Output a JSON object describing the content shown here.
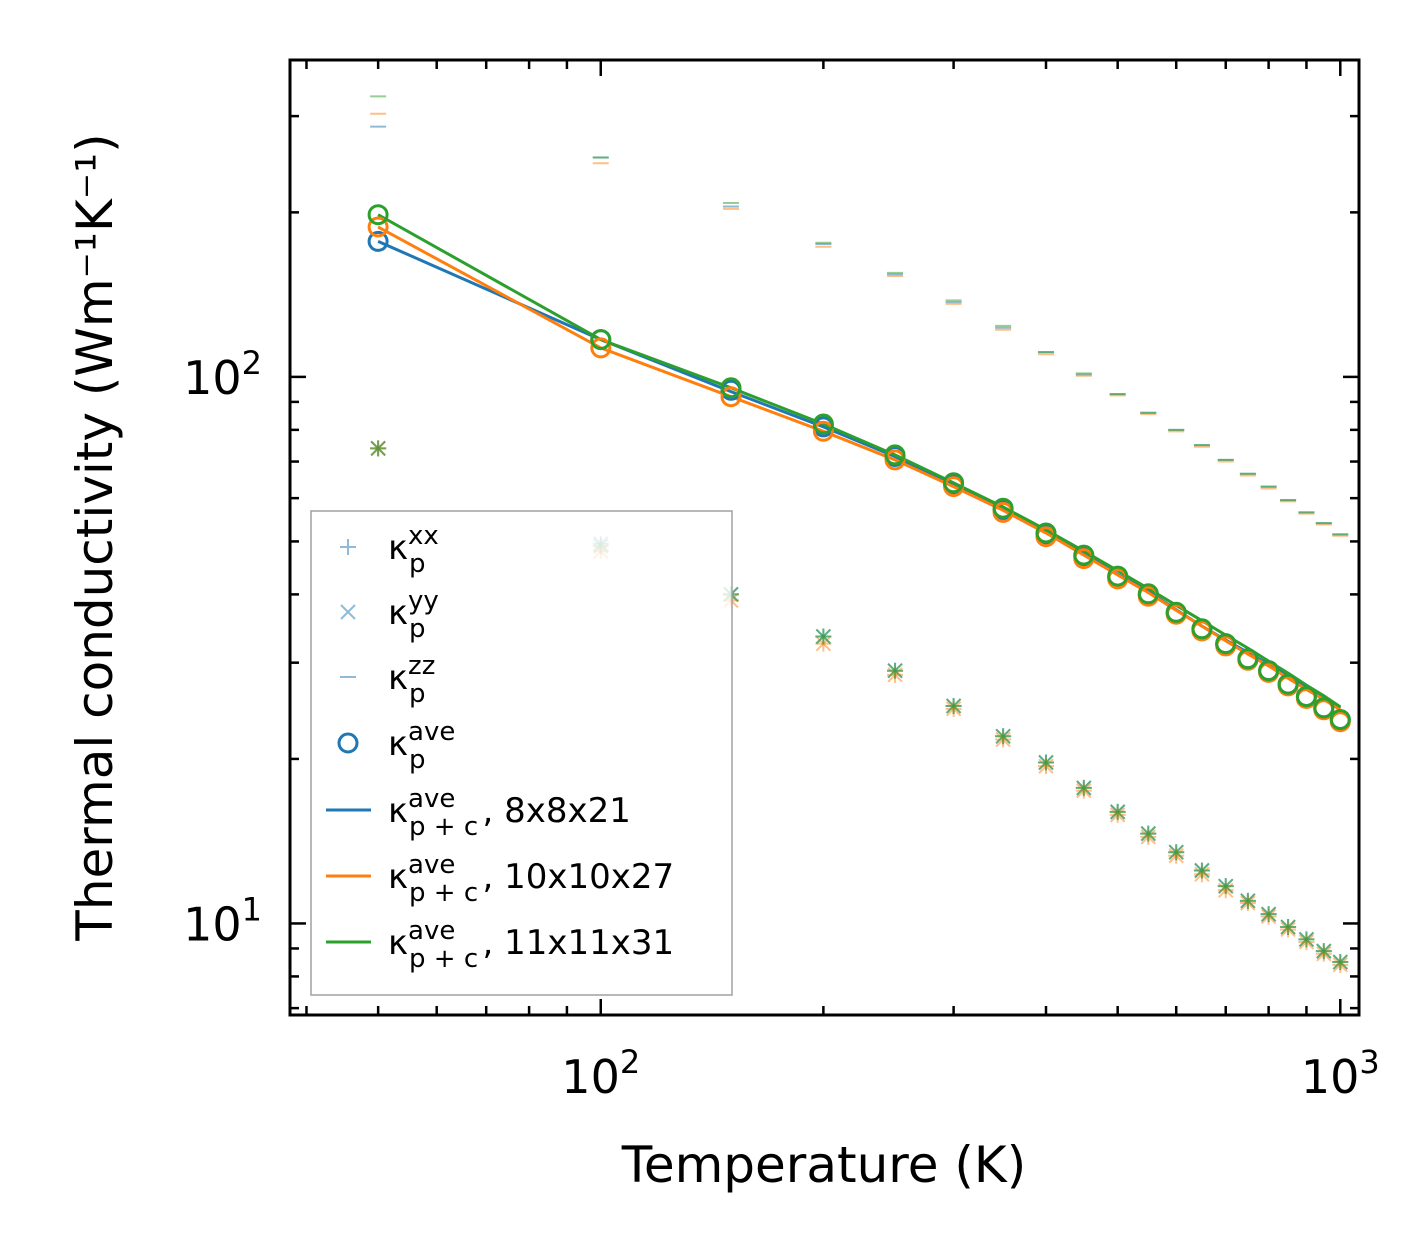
{
  "chart_data": {
    "type": "scatter",
    "scale": {
      "x": "log",
      "y": "log"
    },
    "xlabel": "Temperature (K)",
    "ylabel": "Thermal conductivity (Wm⁻¹K⁻¹)",
    "xlim": [
      38,
      1060
    ],
    "ylim": [
      6.8,
      380
    ],
    "x_ticks": [
      {
        "value": 100,
        "base": "10",
        "exp": "2"
      },
      {
        "value": 1000,
        "base": "10",
        "exp": "3"
      }
    ],
    "y_ticks": [
      {
        "value": 10,
        "base": "10",
        "exp": "1"
      },
      {
        "value": 100,
        "base": "10",
        "exp": "2"
      }
    ],
    "colors": {
      "8x8x21": "#1f77b4",
      "10x10x27": "#ff7f0e",
      "11x11x31": "#2ca02c"
    },
    "x": [
      50,
      100,
      150,
      200,
      250,
      300,
      350,
      400,
      450,
      500,
      550,
      600,
      650,
      700,
      750,
      800,
      850,
      900,
      950,
      1000
    ],
    "series": [
      {
        "name": "8x8x21",
        "color": "#1f77b4",
        "kxx": [
          74,
          49.5,
          40,
          33.5,
          29,
          25,
          22,
          19.7,
          17.7,
          16.0,
          14.6,
          13.5,
          12.5,
          11.7,
          11.0,
          10.4,
          9.85,
          9.35,
          8.9,
          8.5
        ],
        "kyy": [
          74,
          49.5,
          40,
          33.5,
          29,
          25,
          22,
          19.7,
          17.7,
          16.0,
          14.6,
          13.5,
          12.5,
          11.7,
          11.0,
          10.4,
          9.85,
          9.35,
          8.9,
          8.5
        ],
        "kzz": [
          287,
          252,
          205,
          175,
          154,
          137,
          123,
          111,
          101,
          93,
          86,
          80,
          75,
          70.5,
          66.5,
          63,
          59.5,
          56.5,
          54,
          51.5
        ],
        "kave": [
          177,
          117,
          94.5,
          81,
          71.5,
          63.5,
          57,
          51.5,
          47,
          43,
          40,
          37,
          34.5,
          32.5,
          30.5,
          29,
          27.4,
          26,
          24.8,
          23.6
        ],
        "kpc": [
          177,
          117,
          94,
          81,
          71.5,
          63.5,
          57.5,
          52,
          47.5,
          43.5,
          40.5,
          37.5,
          35,
          33,
          31.3,
          29.8,
          28.3,
          27,
          25.9,
          24.8
        ]
      },
      {
        "name": "10x10x27",
        "color": "#ff7f0e",
        "kxx": [
          74,
          48,
          39,
          32.5,
          28.5,
          24.7,
          21.7,
          19.4,
          17.5,
          15.8,
          14.4,
          13.3,
          12.3,
          11.5,
          10.9,
          10.3,
          9.75,
          9.25,
          8.8,
          8.4
        ],
        "kyy": [
          74,
          48,
          39,
          32.5,
          28.5,
          24.7,
          21.7,
          19.4,
          17.5,
          15.8,
          14.4,
          13.3,
          12.3,
          11.5,
          10.9,
          10.3,
          9.75,
          9.25,
          8.8,
          8.4
        ],
        "kzz": [
          303,
          246,
          203,
          173,
          153,
          136,
          122,
          110,
          100.5,
          92.5,
          85.5,
          79.5,
          74.5,
          70,
          66,
          62.5,
          59.2,
          56.2,
          53.7,
          51.2
        ],
        "kave": [
          188,
          113,
          92,
          79.5,
          70.5,
          63,
          56.5,
          51,
          46.5,
          42.7,
          39.7,
          36.8,
          34.3,
          32.2,
          30.3,
          28.8,
          27.2,
          25.8,
          24.6,
          23.4
        ],
        "kpc": [
          188,
          113,
          92,
          79.5,
          70.5,
          63,
          57,
          51.8,
          47.2,
          43.4,
          40.3,
          37.4,
          35,
          32.9,
          31.1,
          29.6,
          28.1,
          26.8,
          25.7,
          24.6
        ]
      },
      {
        "name": "11x11x31",
        "color": "#2ca02c",
        "kxx": [
          74,
          49,
          40,
          33.5,
          29,
          25,
          22,
          19.7,
          17.7,
          16.0,
          14.6,
          13.5,
          12.5,
          11.7,
          11.0,
          10.4,
          9.85,
          9.35,
          8.9,
          8.5
        ],
        "kyy": [
          74,
          49,
          40,
          33.5,
          29,
          25,
          22,
          19.7,
          17.7,
          16.0,
          14.6,
          13.5,
          12.5,
          11.7,
          11.0,
          10.4,
          9.85,
          9.35,
          8.9,
          8.5
        ],
        "kzz": [
          326,
          252,
          208,
          176,
          155,
          138,
          124,
          111,
          101.5,
          93,
          86,
          80,
          75,
          70.5,
          66.5,
          63,
          59.5,
          56.5,
          54,
          51.5
        ],
        "kave": [
          198,
          117,
          95.5,
          82,
          72,
          64,
          57.5,
          51.8,
          47.2,
          43.2,
          40.1,
          37.1,
          34.6,
          32.5,
          30.5,
          29,
          27.4,
          26,
          24.8,
          23.6
        ],
        "kpc": [
          198,
          117,
          95.5,
          82,
          72,
          64,
          57.8,
          52.5,
          48,
          44.2,
          41,
          38.2,
          35.8,
          33.7,
          31.9,
          30.2,
          28.7,
          27.3,
          26.1,
          24.9
        ]
      }
    ],
    "legend": {
      "placement": "lower-left",
      "entries": [
        {
          "id": "kxx",
          "kappa": "κ",
          "sub": "p",
          "sup": "xx",
          "suffix": ""
        },
        {
          "id": "kyy",
          "kappa": "κ",
          "sub": "p",
          "sup": "yy",
          "suffix": ""
        },
        {
          "id": "kzz",
          "kappa": "κ",
          "sub": "p",
          "sup": "zz",
          "suffix": ""
        },
        {
          "id": "kave",
          "kappa": "κ",
          "sub": "p",
          "sup": "ave",
          "suffix": ""
        },
        {
          "id": "kpc-8x8x21",
          "kappa": "κ",
          "sub": "p + c",
          "sup": "ave",
          "suffix": ", 8x8x21"
        },
        {
          "id": "kpc-10x10x27",
          "kappa": "κ",
          "sub": "p + c",
          "sup": "ave",
          "suffix": ", 10x10x27"
        },
        {
          "id": "kpc-11x11x31",
          "kappa": "κ",
          "sub": "p + c",
          "sup": "ave",
          "suffix": ", 11x11x31"
        }
      ]
    }
  }
}
